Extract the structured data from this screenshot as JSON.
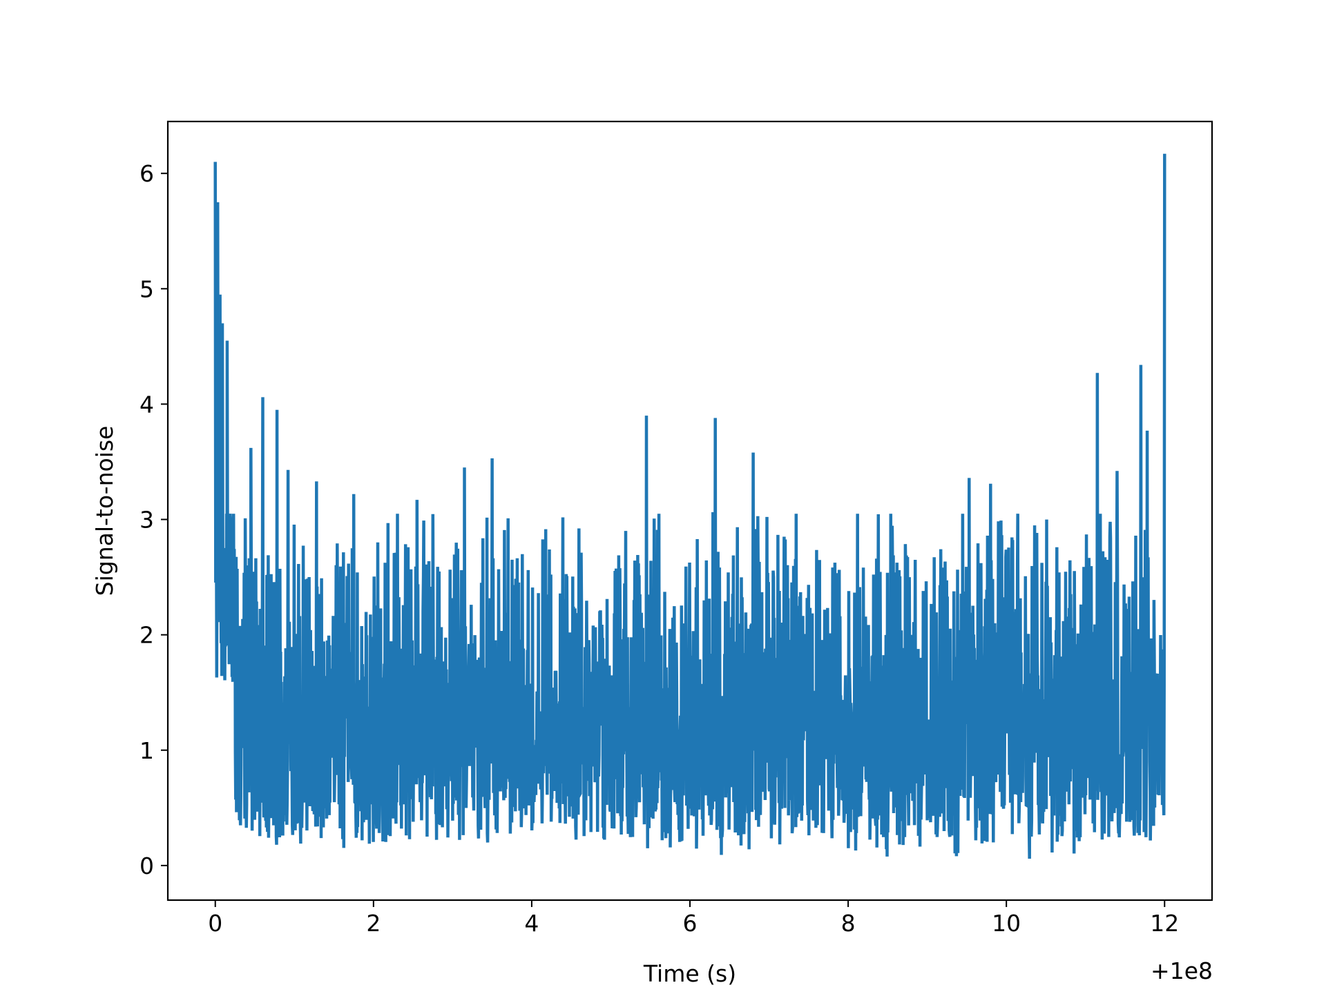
{
  "chart_data": {
    "type": "line",
    "title": "",
    "xlabel": "Time (s)",
    "ylabel": "Signal-to-noise",
    "x_offset_label": "+1e8",
    "xlim": [
      -0.6,
      12.6
    ],
    "ylim": [
      -0.3,
      6.45
    ],
    "xticks": [
      0,
      2,
      4,
      6,
      8,
      10,
      12
    ],
    "xtick_labels": [
      "0",
      "2",
      "4",
      "6",
      "8",
      "10",
      "12"
    ],
    "yticks": [
      0,
      1,
      2,
      3,
      4,
      5,
      6
    ],
    "ytick_labels": [
      "0",
      "1",
      "2",
      "3",
      "4",
      "5",
      "6"
    ],
    "grid": false,
    "series": [
      {
        "color": "#1f77b4",
        "x_range": [
          0,
          12
        ],
        "noise_band": {
          "low": 0.05,
          "high": 2.7
        },
        "peaks": [
          {
            "x": 0.0,
            "y": 6.1
          },
          {
            "x": 0.03,
            "y": 5.75
          },
          {
            "x": 0.06,
            "y": 4.95
          },
          {
            "x": 0.09,
            "y": 4.7
          },
          {
            "x": 0.15,
            "y": 4.55
          },
          {
            "x": 0.45,
            "y": 3.62
          },
          {
            "x": 0.6,
            "y": 4.06
          },
          {
            "x": 0.78,
            "y": 3.95
          },
          {
            "x": 0.92,
            "y": 3.43
          },
          {
            "x": 1.28,
            "y": 3.33
          },
          {
            "x": 1.75,
            "y": 3.22
          },
          {
            "x": 2.55,
            "y": 3.17
          },
          {
            "x": 3.15,
            "y": 3.45
          },
          {
            "x": 3.5,
            "y": 3.53
          },
          {
            "x": 5.45,
            "y": 3.9
          },
          {
            "x": 6.32,
            "y": 3.88
          },
          {
            "x": 6.8,
            "y": 3.58
          },
          {
            "x": 9.53,
            "y": 3.36
          },
          {
            "x": 9.8,
            "y": 3.31
          },
          {
            "x": 11.15,
            "y": 4.27
          },
          {
            "x": 11.4,
            "y": 3.42
          },
          {
            "x": 11.7,
            "y": 4.34
          },
          {
            "x": 11.78,
            "y": 3.77
          },
          {
            "x": 12.0,
            "y": 6.17
          }
        ]
      }
    ]
  }
}
